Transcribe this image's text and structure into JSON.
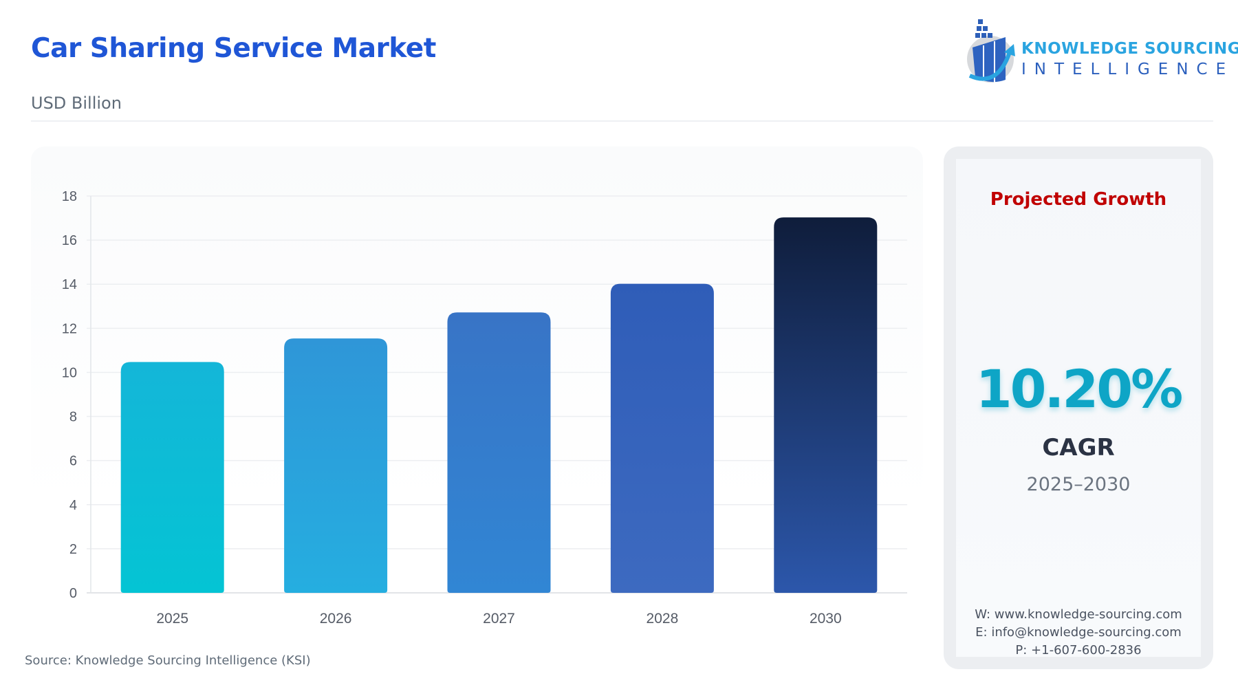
{
  "header": {
    "title": "Car Sharing Service Market",
    "subtitle": "USD Billion"
  },
  "logo": {
    "line1": "KNOWLEDGE SOURCING",
    "line2": "INTELLIGENCE"
  },
  "chart_data": {
    "type": "bar",
    "title": "Car Sharing Service Market",
    "ylabel": "USD Billion",
    "categories": [
      "2025",
      "2026",
      "2027",
      "2028",
      "2030"
    ],
    "values": [
      10.47,
      11.54,
      12.72,
      14.02,
      17.03
    ],
    "ylim": [
      0,
      18
    ],
    "yticks": [
      0,
      2,
      4,
      6,
      8,
      10,
      12,
      14,
      16,
      18
    ],
    "grid": true,
    "bar_colors": [
      [
        "#14b6d8",
        "#04c4d4"
      ],
      [
        "#2f96d8",
        "#25aee0"
      ],
      [
        "#3874c6",
        "#3186d4"
      ],
      [
        "#2f5db8",
        "#3d6ac0"
      ],
      [
        "#0f1d3b",
        "#2c57ab"
      ]
    ]
  },
  "source": "Source: Knowledge Sourcing Intelligence (KSI)",
  "side_panel": {
    "heading": "Projected Growth",
    "cagr_value": "10.20%",
    "cagr_label": "CAGR",
    "period": "2025–2030",
    "website": "W: www.knowledge-sourcing.com",
    "email": "E: info@knowledge-sourcing.com",
    "phone": "P: +1-607-600-2836"
  }
}
